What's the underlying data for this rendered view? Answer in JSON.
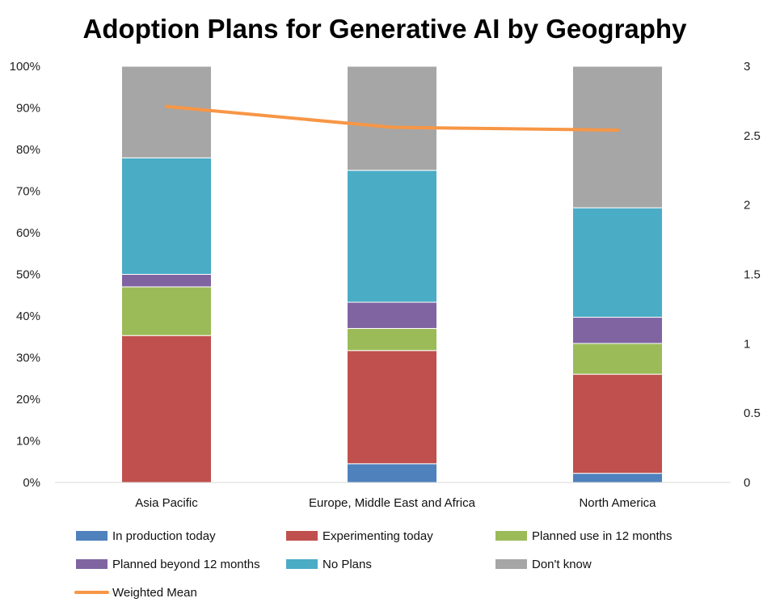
{
  "chart_data": {
    "type": "bar",
    "stacked": true,
    "title": "Adoption Plans for Generative AI by Geography",
    "categories": [
      "Asia Pacific",
      "Europe, Middle East and Africa",
      "North America"
    ],
    "y_left": {
      "min": 0,
      "max": 100,
      "ticks": [
        0,
        10,
        20,
        30,
        40,
        50,
        60,
        70,
        80,
        90,
        100
      ],
      "tick_labels": [
        "0%",
        "10%",
        "20%",
        "30%",
        "40%",
        "50%",
        "60%",
        "70%",
        "80%",
        "90%",
        "100%"
      ]
    },
    "y_right": {
      "min": 0,
      "max": 3,
      "ticks": [
        0,
        0.5,
        1,
        1.5,
        2,
        2.5,
        3
      ],
      "tick_labels": [
        "0",
        "0.5",
        "1",
        "1.5",
        "2",
        "2.5",
        "3"
      ]
    },
    "series": [
      {
        "name": "In production today",
        "color": "#4f81bd",
        "values": [
          0,
          4.5,
          2.2
        ]
      },
      {
        "name": "Experimenting today",
        "color": "#c0504d",
        "values": [
          35.3,
          27.2,
          23.8
        ]
      },
      {
        "name": "Planned use in 12 months",
        "color": "#9bbb59",
        "values": [
          11.7,
          5.3,
          7.4
        ]
      },
      {
        "name": "Planned beyond 12 months",
        "color": "#8064a2",
        "values": [
          3.0,
          6.3,
          6.3
        ]
      },
      {
        "name": "No Plans",
        "color": "#4bacc6",
        "values": [
          28.0,
          31.7,
          26.3
        ]
      },
      {
        "name": "Don't know",
        "color": "#a6a6a6",
        "values": [
          22.0,
          25.0,
          34.0
        ]
      }
    ],
    "line_series": {
      "name": "Weighted Mean",
      "color": "#f79646",
      "axis": "right",
      "values": [
        2.71,
        2.56,
        2.54
      ]
    },
    "legend_position": "bottom",
    "grid": false
  }
}
